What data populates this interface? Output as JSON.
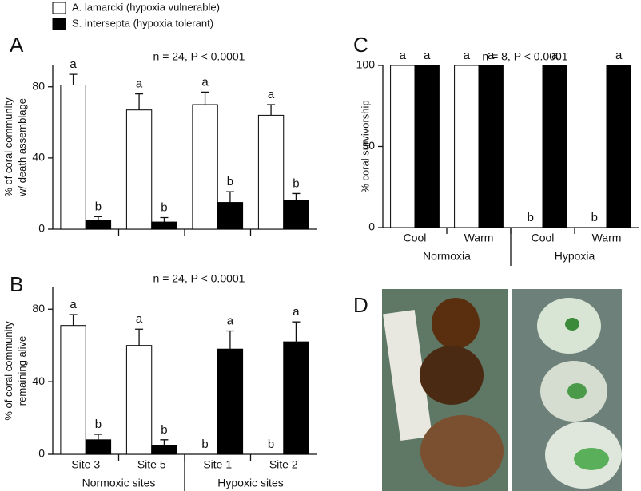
{
  "chart_data": [
    {
      "type": "bar",
      "panel_label": "A",
      "annotation": "n = 24, P < 0.0001",
      "ylabel": [
        "% of coral community",
        "w/ death assemblage"
      ],
      "categories": [
        null,
        null,
        null,
        null
      ],
      "ylim": [
        0,
        92
      ],
      "yticks": [
        0,
        40,
        80
      ],
      "series": [
        {
          "name": "A. lamarcki (hypoxia vulnerable)",
          "color": "#ffffff",
          "values": [
            81,
            67,
            70,
            64
          ],
          "errors": [
            6,
            9,
            7,
            6
          ],
          "letters": [
            "a",
            "a",
            "a",
            "a"
          ]
        },
        {
          "name": "S. intersepta (hypoxia tolerant)",
          "color": "#000000",
          "values": [
            5,
            4,
            15,
            16
          ],
          "errors": [
            2,
            2.5,
            6,
            4
          ],
          "letters": [
            "b",
            "b",
            "b",
            "b"
          ]
        }
      ]
    },
    {
      "type": "bar",
      "panel_label": "B",
      "annotation": "n = 24, P < 0.0001",
      "ylabel": [
        "% of coral community",
        "remaining alive"
      ],
      "categories": [
        "Site 3",
        "Site 5",
        "Site 1",
        "Site 2"
      ],
      "groups": [
        "Normoxic sites",
        "Hypoxic sites"
      ],
      "ylim": [
        0,
        92
      ],
      "yticks": [
        0,
        40,
        80
      ],
      "series": [
        {
          "color": "#ffffff",
          "values": [
            71,
            60,
            0,
            0
          ],
          "errors": [
            6,
            9,
            null,
            null
          ],
          "letters": [
            "a",
            "a",
            "b",
            "b"
          ]
        },
        {
          "color": "#000000",
          "values": [
            8,
            5,
            58,
            62
          ],
          "errors": [
            3,
            3,
            10,
            11
          ],
          "letters": [
            "b",
            "b",
            "a",
            "a"
          ]
        }
      ]
    },
    {
      "type": "bar",
      "panel_label": "C",
      "annotation": "n = 8, P < 0.0001",
      "ylabel": [
        "% coral survivorship"
      ],
      "categories": [
        "Cool",
        "Warm",
        "Cool",
        "Warm"
      ],
      "groups": [
        "Normoxia",
        "Hypoxia"
      ],
      "ylim": [
        0,
        100
      ],
      "yticks": [
        0,
        50,
        100
      ],
      "series": [
        {
          "color": "#ffffff",
          "values": [
            100,
            100,
            0,
            0
          ],
          "letters": [
            "a",
            "a",
            "b",
            "b"
          ]
        },
        {
          "color": "#000000",
          "values": [
            100,
            100,
            100,
            100
          ],
          "letters": [
            "a",
            "a",
            "a",
            "a"
          ]
        }
      ]
    }
  ],
  "photo_panel": {
    "label": "D"
  }
}
